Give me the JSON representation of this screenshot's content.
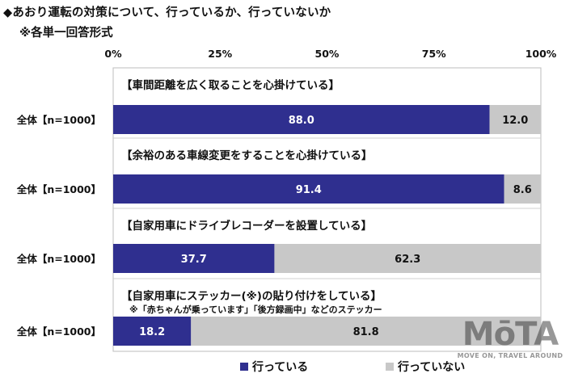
{
  "title": "◆あおり運転の対策について、行っているか、行っていないか",
  "subtitle": "※各単一回答形式",
  "chart_data": {
    "type": "bar",
    "orientation": "horizontal",
    "stacked": true,
    "ticks": [
      "0%",
      "25%",
      "50%",
      "75%",
      "100%"
    ],
    "xlim": [
      0,
      100
    ],
    "series_names": [
      "行っている",
      "行っていない"
    ],
    "series_colors": [
      "#2f2f8f",
      "#c8c8c8"
    ],
    "value_label_colors": [
      "#ffffff",
      "#111111"
    ],
    "groups": [
      {
        "title": "【車間距離を広く取ることを心掛けている】",
        "note": "",
        "row_label": "全体【n=1000】",
        "values": [
          88.0,
          12.0
        ],
        "labels": [
          "88.0",
          "12.0"
        ]
      },
      {
        "title": "【余裕のある車線変更をすることを心掛けている】",
        "note": "",
        "row_label": "全体【n=1000】",
        "values": [
          91.4,
          8.6
        ],
        "labels": [
          "91.4",
          "8.6"
        ]
      },
      {
        "title": "【自家用車にドライブレコーダーを設置している】",
        "note": "",
        "row_label": "全体【n=1000】",
        "values": [
          37.7,
          62.3
        ],
        "labels": [
          "37.7",
          "62.3"
        ]
      },
      {
        "title": "【自家用車にステッカー(※)の貼り付けをしている】",
        "note": "※「赤ちゃんが乗っています」「後方録画中」などのステッカー",
        "row_label": "全体【n=1000】",
        "values": [
          18.2,
          81.8
        ],
        "labels": [
          "18.2",
          "81.8"
        ]
      }
    ]
  },
  "legend": {
    "items": [
      "行っている",
      "行っていない"
    ]
  },
  "watermark": {
    "logo": "MōTA",
    "tagline": "MOVE ON, TRAVEL AROUND"
  }
}
